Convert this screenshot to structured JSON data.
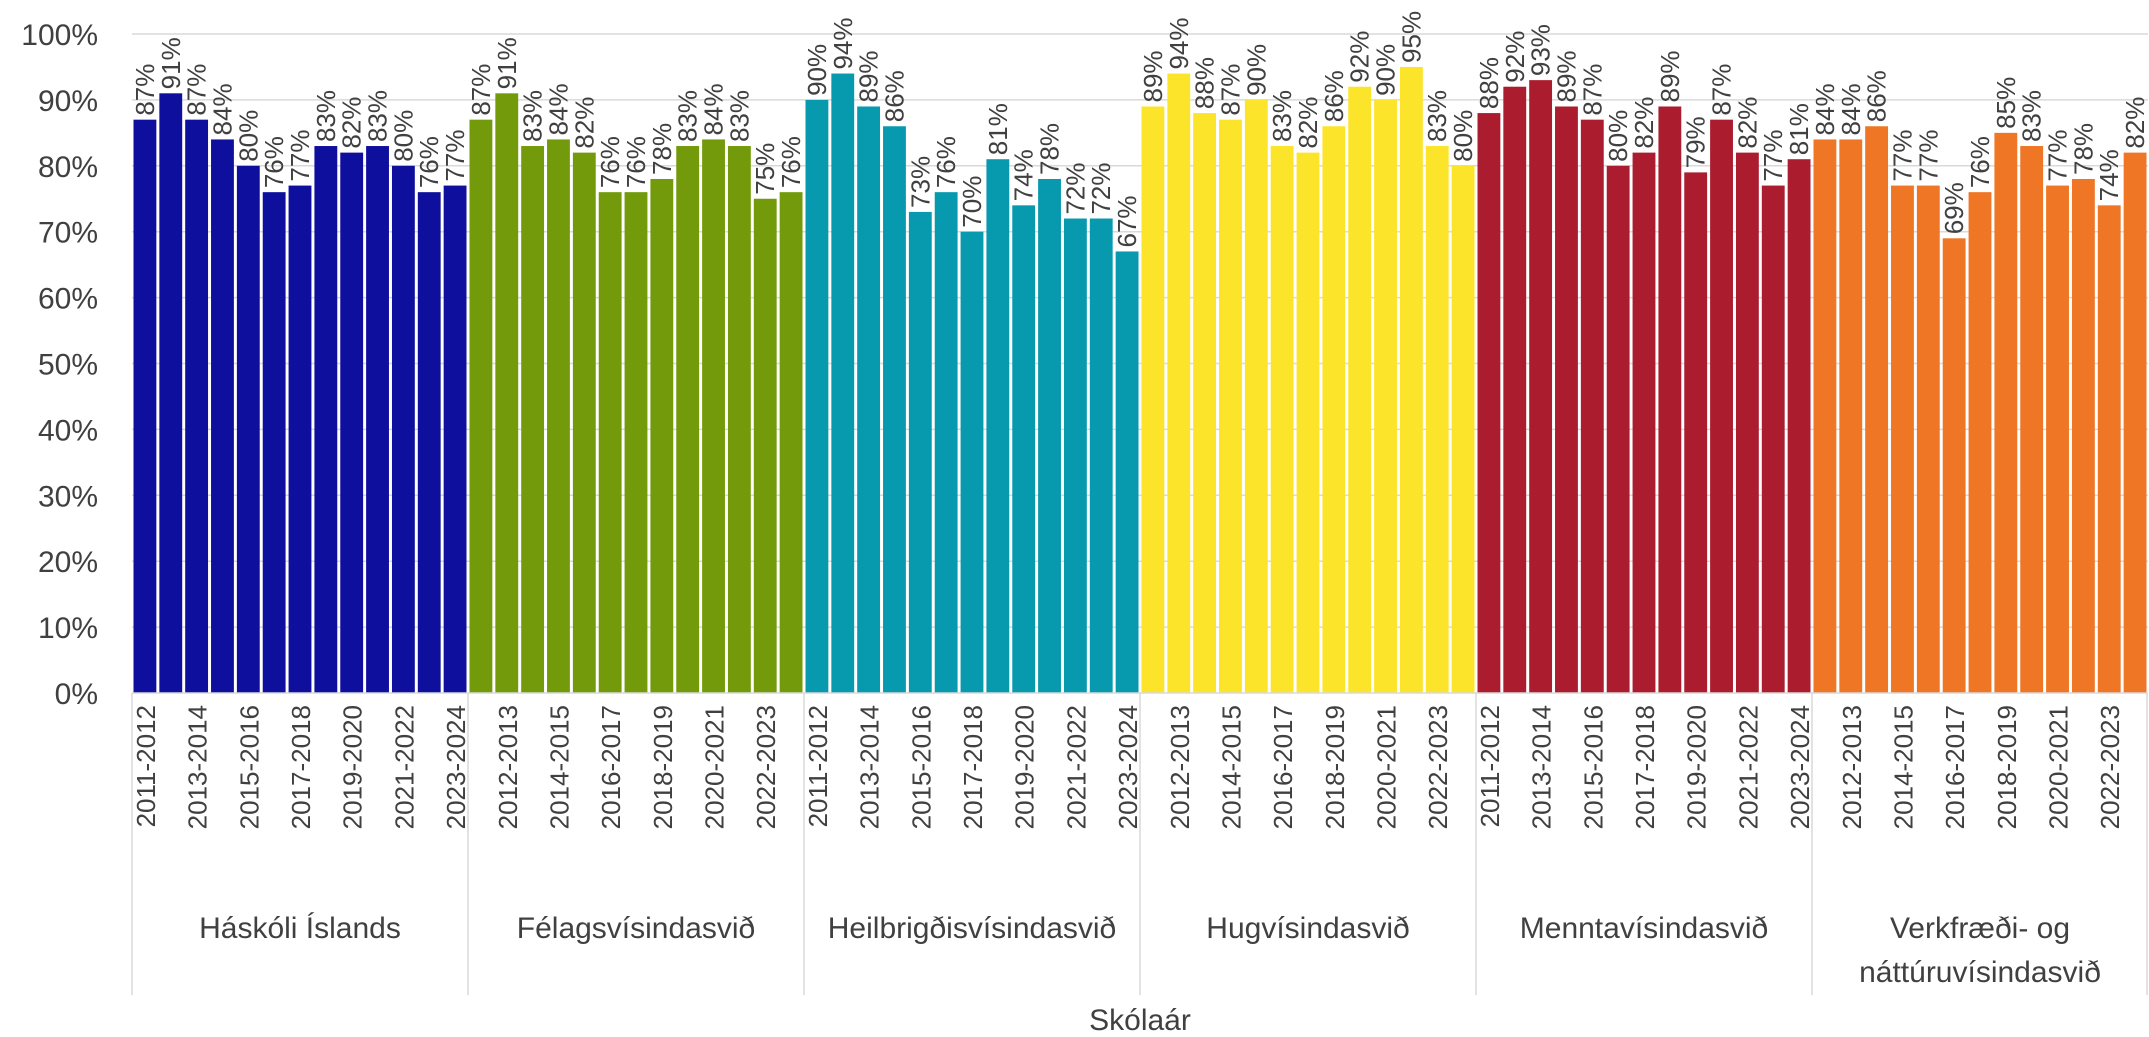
{
  "chart_data": {
    "type": "bar",
    "xlabel": "Skólaár",
    "ylabel": "",
    "ylim": [
      0,
      100
    ],
    "ytick_labels": [
      "0%",
      "10%",
      "20%",
      "30%",
      "40%",
      "50%",
      "60%",
      "70%",
      "80%",
      "90%",
      "100%"
    ],
    "grid": true,
    "legend": "none",
    "value_format": "percent",
    "groups": [
      {
        "name": "Háskóli Íslands",
        "label_lines": [
          "Háskóli Íslands"
        ],
        "color": "#0F0F9E",
        "x": [
          "2011-2012",
          "2012-2013",
          "2013-2014",
          "2014-2015",
          "2015-2016",
          "2016-2017",
          "2017-2018",
          "2018-2019",
          "2019-2020",
          "2020-2021",
          "2021-2022",
          "2022-2023",
          "2023-2024"
        ],
        "x_shown": [
          "2011-2012",
          "",
          "2013-2014",
          "",
          "2015-2016",
          "",
          "2017-2018",
          "",
          "2019-2020",
          "",
          "2021-2022",
          "",
          "2023-2024"
        ],
        "values": [
          87,
          91,
          87,
          84,
          80,
          76,
          77,
          83,
          82,
          83,
          80,
          76,
          77
        ]
      },
      {
        "name": "Félagsvísindasvið",
        "label_lines": [
          "Félagsvísindasvið"
        ],
        "color": "#739A0A",
        "x": [
          "2011-2012",
          "2012-2013",
          "2013-2014",
          "2014-2015",
          "2015-2016",
          "2016-2017",
          "2017-2018",
          "2018-2019",
          "2019-2020",
          "2020-2021",
          "2021-2022",
          "2022-2023",
          "2023-2024"
        ],
        "x_shown": [
          "",
          "2012-2013",
          "",
          "2014-2015",
          "",
          "2016-2017",
          "",
          "2018-2019",
          "",
          "2020-2021",
          "",
          "2022-2023",
          ""
        ],
        "values": [
          87,
          91,
          83,
          84,
          82,
          76,
          76,
          78,
          83,
          84,
          83,
          75,
          76
        ]
      },
      {
        "name": "Heilbrigðisvísindasvið",
        "label_lines": [
          "Heilbrigðisvísindasvið"
        ],
        "color": "#0799AE",
        "x": [
          "2011-2012",
          "2012-2013",
          "2013-2014",
          "2014-2015",
          "2015-2016",
          "2016-2017",
          "2017-2018",
          "2018-2019",
          "2019-2020",
          "2020-2021",
          "2021-2022",
          "2022-2023",
          "2023-2024"
        ],
        "x_shown": [
          "2011-2012",
          "",
          "2013-2014",
          "",
          "2015-2016",
          "",
          "2017-2018",
          "",
          "2019-2020",
          "",
          "2021-2022",
          "",
          "2023-2024"
        ],
        "values": [
          90,
          94,
          89,
          86,
          73,
          76,
          70,
          81,
          74,
          78,
          72,
          72,
          67
        ]
      },
      {
        "name": "Hugvísindasvið",
        "label_lines": [
          "Hugvísindasvið"
        ],
        "color": "#FCE42A",
        "x": [
          "2011-2012",
          "2012-2013",
          "2013-2014",
          "2014-2015",
          "2015-2016",
          "2016-2017",
          "2017-2018",
          "2018-2019",
          "2019-2020",
          "2020-2021",
          "2021-2022",
          "2022-2023",
          "2023-2024"
        ],
        "x_shown": [
          "",
          "2012-2013",
          "",
          "2014-2015",
          "",
          "2016-2017",
          "",
          "2018-2019",
          "",
          "2020-2021",
          "",
          "2022-2023",
          ""
        ],
        "values": [
          89,
          94,
          88,
          87,
          90,
          83,
          82,
          86,
          92,
          90,
          95,
          83,
          80
        ]
      },
      {
        "name": "Menntavísindasvið",
        "label_lines": [
          "Menntavísindasvið"
        ],
        "color": "#AA1C2E",
        "x": [
          "2011-2012",
          "2012-2013",
          "2013-2014",
          "2014-2015",
          "2015-2016",
          "2016-2017",
          "2017-2018",
          "2018-2019",
          "2019-2020",
          "2020-2021",
          "2021-2022",
          "2022-2023",
          "2023-2024"
        ],
        "x_shown": [
          "2011-2012",
          "",
          "2013-2014",
          "",
          "2015-2016",
          "",
          "2017-2018",
          "",
          "2019-2020",
          "",
          "2021-2022",
          "",
          "2023-2024"
        ],
        "values": [
          88,
          92,
          93,
          89,
          87,
          80,
          82,
          89,
          79,
          87,
          82,
          77,
          81
        ]
      },
      {
        "name": "Verkfræði- og náttúruvísindasvið",
        "label_lines": [
          "Verkfræði- og",
          "náttúruvísindasvið"
        ],
        "color": "#EE7624",
        "x": [
          "2011-2012",
          "2012-2013",
          "2013-2014",
          "2014-2015",
          "2015-2016",
          "2016-2017",
          "2017-2018",
          "2018-2019",
          "2019-2020",
          "2020-2021",
          "2021-2022",
          "2022-2023",
          "2023-2024"
        ],
        "x_shown": [
          "",
          "2012-2013",
          "",
          "2014-2015",
          "",
          "2016-2017",
          "",
          "2018-2019",
          "",
          "2020-2021",
          "",
          "2022-2023",
          ""
        ],
        "values": [
          84,
          84,
          86,
          77,
          77,
          69,
          76,
          85,
          83,
          77,
          78,
          74,
          82
        ]
      }
    ]
  }
}
